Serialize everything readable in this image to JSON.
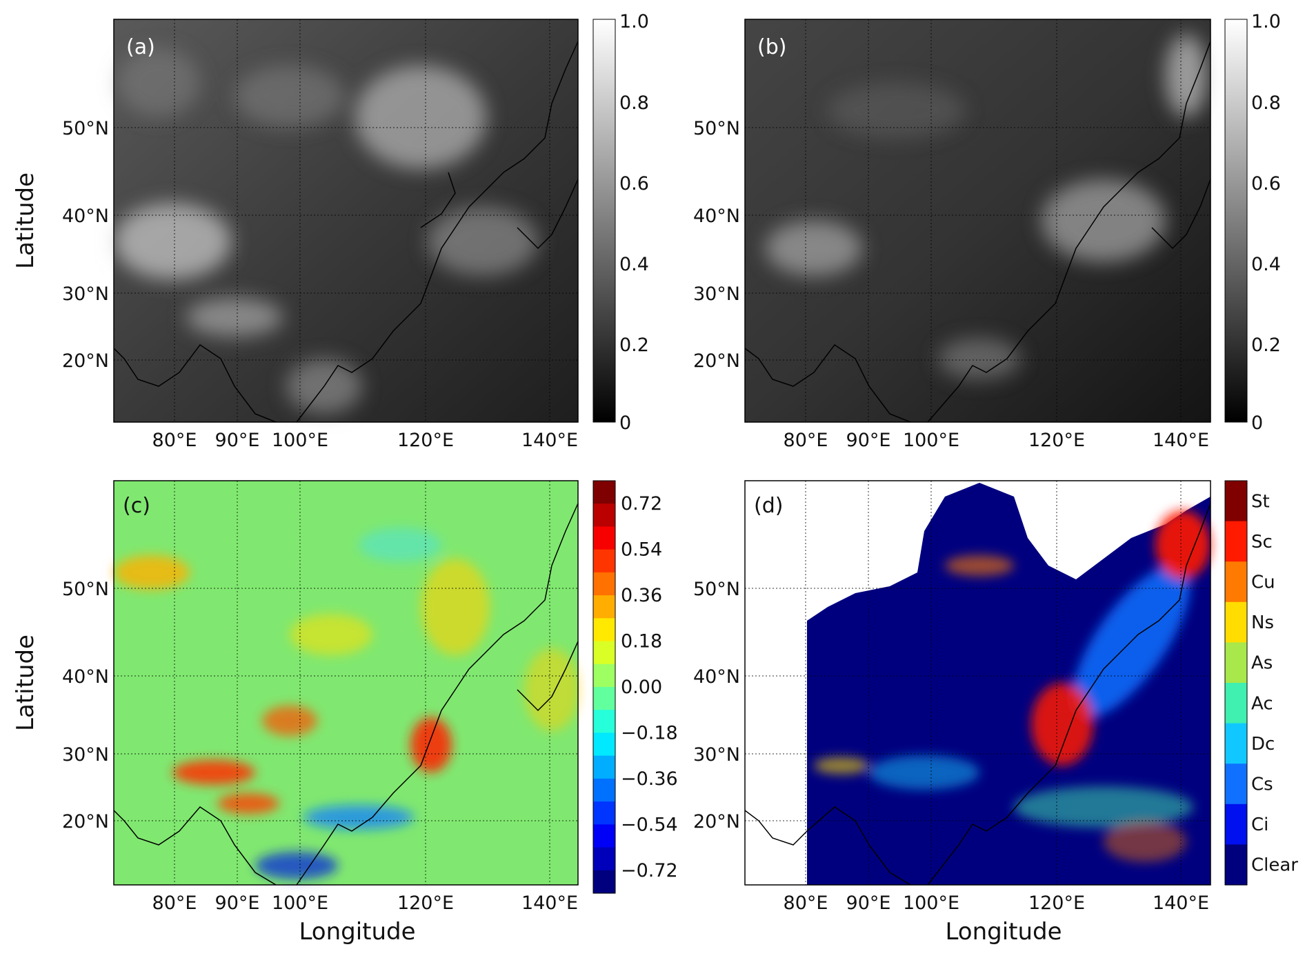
{
  "figure": {
    "y_axis_title": "Latitude",
    "x_axis_title": "Longitude",
    "lon_tick_labels": [
      "80°E",
      "90°E",
      "100°E",
      "120°E",
      "140°E"
    ],
    "lat_tick_labels": [
      "50°N",
      "40°N",
      "30°N",
      "20°N"
    ]
  },
  "panels": [
    {
      "label": "(a)",
      "kind": "grayscale",
      "colorbar": {
        "ticks": [
          "1.0",
          "0.8",
          "0.6",
          "0.4",
          "0.2",
          "0"
        ],
        "range": [
          0,
          1
        ],
        "colors": [
          "#ffffff",
          "#000000"
        ]
      }
    },
    {
      "label": "(b)",
      "kind": "grayscale",
      "colorbar": {
        "ticks": [
          "1.0",
          "0.8",
          "0.6",
          "0.4",
          "0.2",
          "0"
        ],
        "range": [
          0,
          1
        ],
        "colors": [
          "#ffffff",
          "#000000"
        ]
      }
    },
    {
      "label": "(c)",
      "kind": "difference",
      "colorbar": {
        "ticks": [
          "0.72",
          "0.54",
          "0.36",
          "0.18",
          "0.00",
          "−0.18",
          "−0.36",
          "−0.54",
          "−0.72"
        ],
        "range": [
          -0.81,
          0.81
        ],
        "colors": [
          "#7f0000",
          "#ff0000",
          "#ff8000",
          "#ffff00",
          "#80ff80",
          "#00ffff",
          "#0080ff",
          "#0000ff",
          "#00007f"
        ]
      }
    },
    {
      "label": "(d)",
      "kind": "categorical",
      "colorbar": {
        "classes": [
          {
            "name": "St",
            "color": "#800000"
          },
          {
            "name": "Sc",
            "color": "#ff1a00"
          },
          {
            "name": "Cu",
            "color": "#ff7a00"
          },
          {
            "name": "Ns",
            "color": "#ffdd00"
          },
          {
            "name": "As",
            "color": "#a8e84a"
          },
          {
            "name": "Ac",
            "color": "#3ff0b0"
          },
          {
            "name": "Dc",
            "color": "#10c8ff"
          },
          {
            "name": "Cs",
            "color": "#1070ff"
          },
          {
            "name": "Ci",
            "color": "#0010ee"
          },
          {
            "name": "Clear",
            "color": "#00007f"
          }
        ]
      }
    }
  ]
}
